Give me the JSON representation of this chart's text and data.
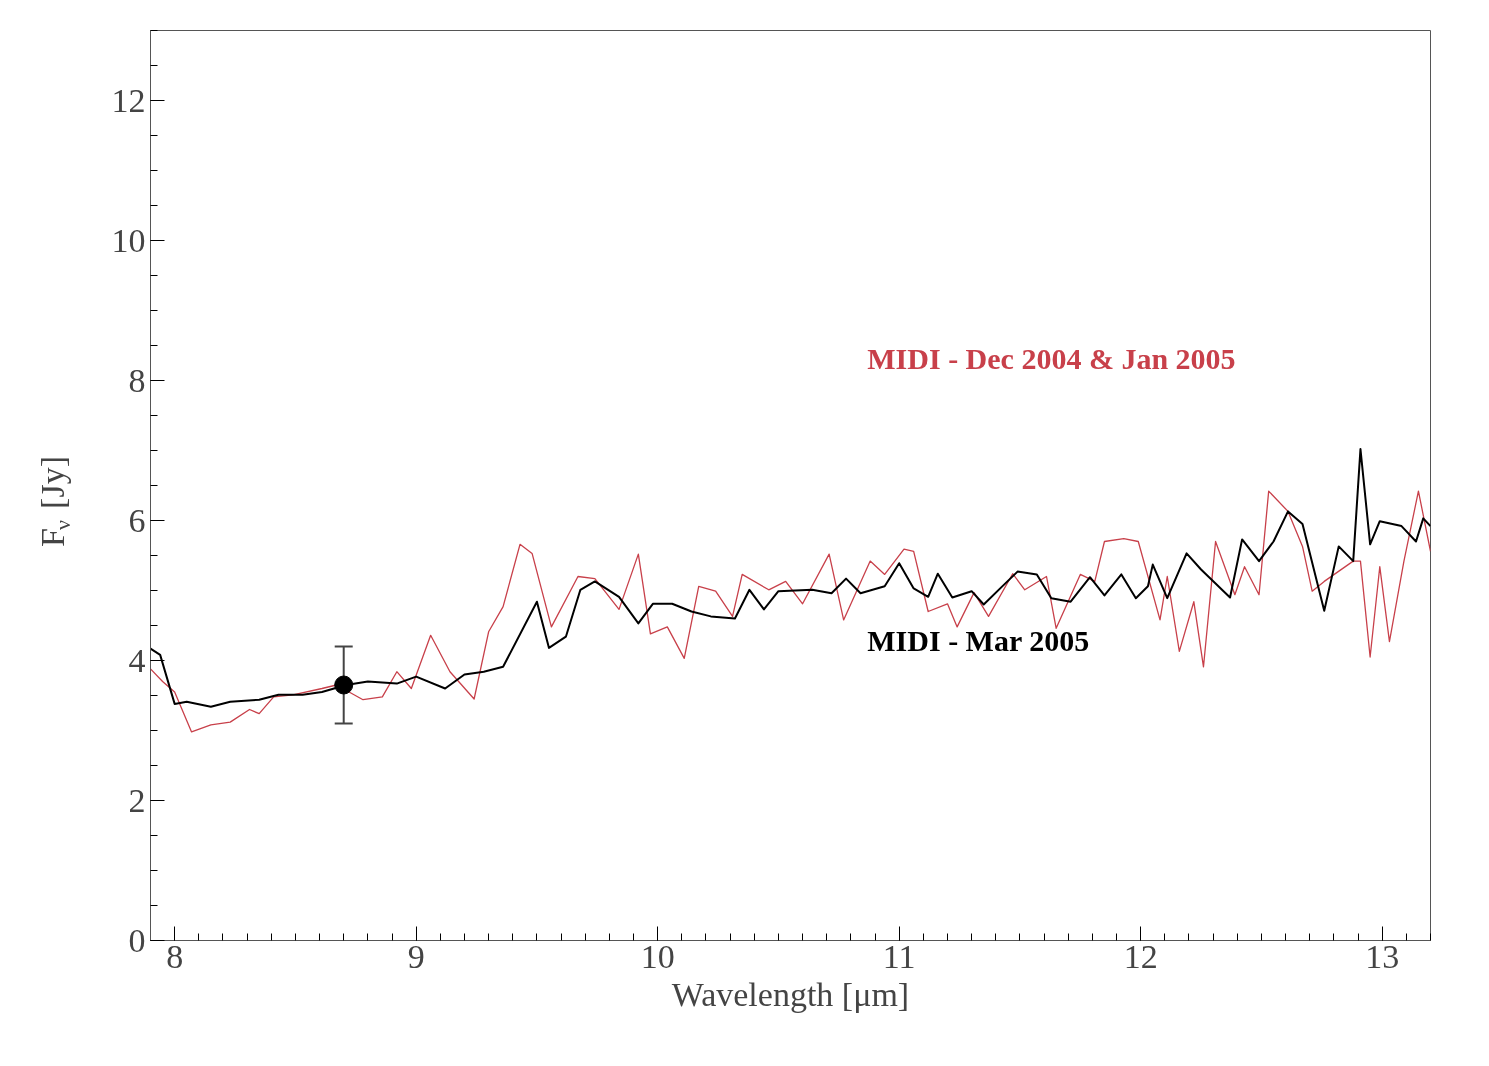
{
  "chart_data": {
    "type": "line",
    "xlabel": "Wavelength [μm]",
    "ylabel": "F$_{ν}$ [Jy]",
    "xlim": [
      7.9,
      13.2
    ],
    "ylim": [
      0,
      13
    ],
    "xticks": [
      8,
      9,
      10,
      11,
      12,
      13
    ],
    "yticks": [
      0,
      2,
      4,
      6,
      8,
      10,
      12
    ],
    "grid": false,
    "legend": false,
    "marker": "none",
    "line_style": "solid",
    "series": [
      {
        "name": "MIDI - Dec 2004 & Jan 2005",
        "color": "#c8404a",
        "x": [
          7.9,
          7.95,
          8.0,
          8.07,
          8.15,
          8.23,
          8.31,
          8.35,
          8.41,
          8.49,
          8.61,
          8.67,
          8.78,
          8.86,
          8.92,
          8.98,
          9.06,
          9.14,
          9.24,
          9.3,
          9.36,
          9.43,
          9.48,
          9.56,
          9.67,
          9.74,
          9.84,
          9.92,
          9.97,
          10.04,
          10.11,
          10.17,
          10.24,
          10.31,
          10.35,
          10.46,
          10.53,
          10.6,
          10.71,
          10.77,
          10.88,
          10.94,
          11.02,
          11.06,
          11.12,
          11.2,
          11.24,
          11.31,
          11.37,
          11.47,
          11.52,
          11.61,
          11.65,
          11.75,
          11.81,
          11.85,
          11.93,
          11.99,
          12.08,
          12.11,
          12.16,
          12.22,
          12.26,
          12.31,
          12.39,
          12.43,
          12.49,
          12.53,
          12.61,
          12.67,
          12.71,
          12.76,
          12.88,
          12.91,
          12.95,
          12.99,
          13.03,
          13.09,
          13.15,
          13.2
        ],
        "values": [
          3.88,
          3.7,
          3.55,
          2.98,
          3.08,
          3.12,
          3.3,
          3.24,
          3.48,
          3.51,
          3.6,
          3.65,
          3.44,
          3.48,
          3.84,
          3.6,
          4.36,
          3.84,
          3.45,
          4.41,
          4.77,
          5.66,
          5.53,
          4.48,
          5.2,
          5.17,
          4.73,
          5.52,
          4.38,
          4.48,
          4.03,
          5.06,
          4.99,
          4.63,
          5.23,
          5.01,
          5.13,
          4.81,
          5.52,
          4.58,
          5.42,
          5.23,
          5.59,
          5.56,
          4.7,
          4.81,
          4.48,
          4.97,
          4.63,
          5.24,
          5.01,
          5.2,
          4.46,
          5.23,
          5.13,
          5.7,
          5.74,
          5.7,
          4.58,
          5.2,
          4.13,
          4.84,
          3.91,
          5.7,
          4.94,
          5.34,
          4.94,
          6.42,
          6.13,
          5.63,
          4.99,
          5.13,
          5.42,
          5.42,
          4.05,
          5.34,
          4.27,
          5.42,
          6.42,
          5.56
        ]
      },
      {
        "name": "MIDI - Mar 2005",
        "color": "#000000",
        "x": [
          7.9,
          7.94,
          8.0,
          8.05,
          8.15,
          8.23,
          8.35,
          8.43,
          8.53,
          8.61,
          8.71,
          8.8,
          8.92,
          9.0,
          9.12,
          9.2,
          9.28,
          9.36,
          9.5,
          9.55,
          9.62,
          9.68,
          9.74,
          9.84,
          9.92,
          9.98,
          10.06,
          10.14,
          10.22,
          10.32,
          10.38,
          10.44,
          10.5,
          10.64,
          10.72,
          10.78,
          10.84,
          10.94,
          11.0,
          11.06,
          11.12,
          11.16,
          11.22,
          11.3,
          11.35,
          11.43,
          11.49,
          11.57,
          11.63,
          11.71,
          11.79,
          11.85,
          11.92,
          11.98,
          12.03,
          12.05,
          12.11,
          12.19,
          12.25,
          12.37,
          12.42,
          12.49,
          12.55,
          12.61,
          12.67,
          12.76,
          12.82,
          12.88,
          12.91,
          12.95,
          12.99,
          13.08,
          13.14,
          13.17,
          13.2
        ],
        "values": [
          4.17,
          4.08,
          3.38,
          3.41,
          3.34,
          3.41,
          3.44,
          3.51,
          3.51,
          3.55,
          3.65,
          3.7,
          3.67,
          3.77,
          3.6,
          3.8,
          3.84,
          3.91,
          4.84,
          4.18,
          4.34,
          5.01,
          5.13,
          4.91,
          4.53,
          4.81,
          4.81,
          4.7,
          4.63,
          4.6,
          5.01,
          4.73,
          4.99,
          5.01,
          4.96,
          5.17,
          4.96,
          5.06,
          5.39,
          5.03,
          4.91,
          5.24,
          4.9,
          4.99,
          4.8,
          5.07,
          5.27,
          5.23,
          4.89,
          4.84,
          5.19,
          4.93,
          5.23,
          4.89,
          5.06,
          5.37,
          4.89,
          5.53,
          5.3,
          4.9,
          5.73,
          5.42,
          5.7,
          6.13,
          5.95,
          4.71,
          5.63,
          5.42,
          7.02,
          5.66,
          5.99,
          5.92,
          5.7,
          6.03,
          5.92
        ]
      },
      {
        "type": "scatter",
        "color": "#000000",
        "marker": "circle",
        "x": [
          8.7
        ],
        "values": [
          3.65
        ],
        "errors": [
          [
            3.1,
            4.2
          ]
        ]
      }
    ]
  }
}
